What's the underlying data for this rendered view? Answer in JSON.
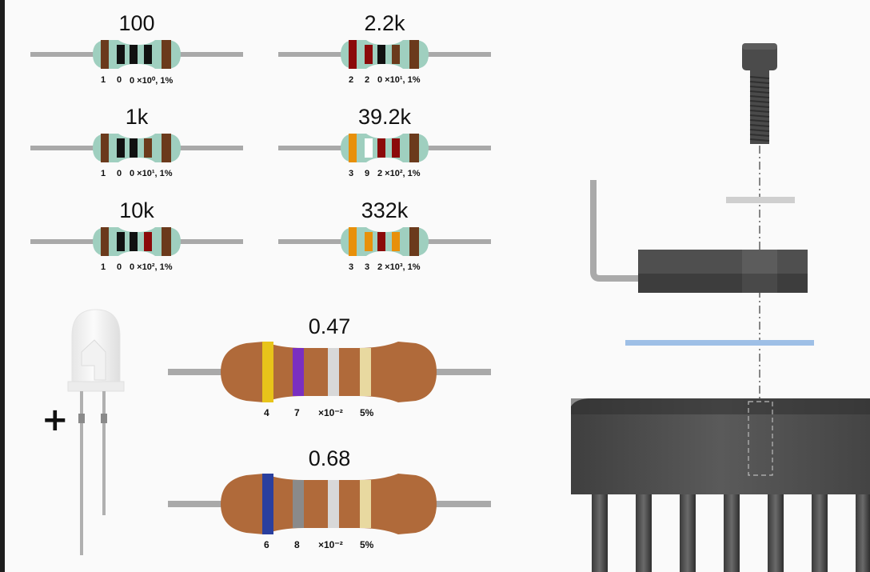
{
  "small_resistors": [
    {
      "value": "100",
      "code": [
        "1",
        "0",
        "0 ×10⁰, 1%"
      ],
      "bands": [
        "#6b3a1c",
        "#111111",
        "#111111",
        "#111111",
        "#6b3a1c"
      ]
    },
    {
      "value": "2.2k",
      "code": [
        "2",
        "2",
        "0 ×10¹, 1%"
      ],
      "bands": [
        "#8b0a0a",
        "#8b0a0a",
        "#111111",
        "#6b3a1c",
        "#6b3a1c"
      ]
    },
    {
      "value": "1k",
      "code": [
        "1",
        "0",
        "0 ×10¹, 1%"
      ],
      "bands": [
        "#6b3a1c",
        "#111111",
        "#111111",
        "#6b3a1c",
        "#6b3a1c"
      ]
    },
    {
      "value": "39.2k",
      "code": [
        "3",
        "9",
        "2 ×10², 1%"
      ],
      "bands": [
        "#e8900a",
        "#ffffff",
        "#8b0a0a",
        "#8b0a0a",
        "#6b3a1c"
      ]
    },
    {
      "value": "10k",
      "code": [
        "1",
        "0",
        "0 ×10², 1%"
      ],
      "bands": [
        "#6b3a1c",
        "#111111",
        "#111111",
        "#8b0a0a",
        "#6b3a1c"
      ]
    },
    {
      "value": "332k",
      "code": [
        "3",
        "3",
        "2 ×10³, 1%"
      ],
      "bands": [
        "#e8900a",
        "#e8900a",
        "#8b0a0a",
        "#e8900a",
        "#6b3a1c"
      ]
    }
  ],
  "large_resistors": [
    {
      "value": "0.47",
      "code": [
        "4",
        "7",
        "×10⁻²",
        "5%"
      ],
      "bands": [
        "#e8c41a",
        "#7a2fc0",
        "#d8d8d8",
        "#e8d9a0"
      ]
    },
    {
      "value": "0.68",
      "code": [
        "6",
        "8",
        "×10⁻²",
        "5%"
      ],
      "bands": [
        "#2a3f9e",
        "#8a8a8a",
        "#d8d8d8",
        "#e8d9a0"
      ]
    }
  ],
  "led": {
    "polarity_label": "+"
  },
  "colors": {
    "body_green": "#9fcfbf",
    "body_brown": "#b06a3a",
    "lead": "#a9a9a9",
    "washer": "#9ebfe6",
    "metal_dark": "#4a4a4a"
  }
}
